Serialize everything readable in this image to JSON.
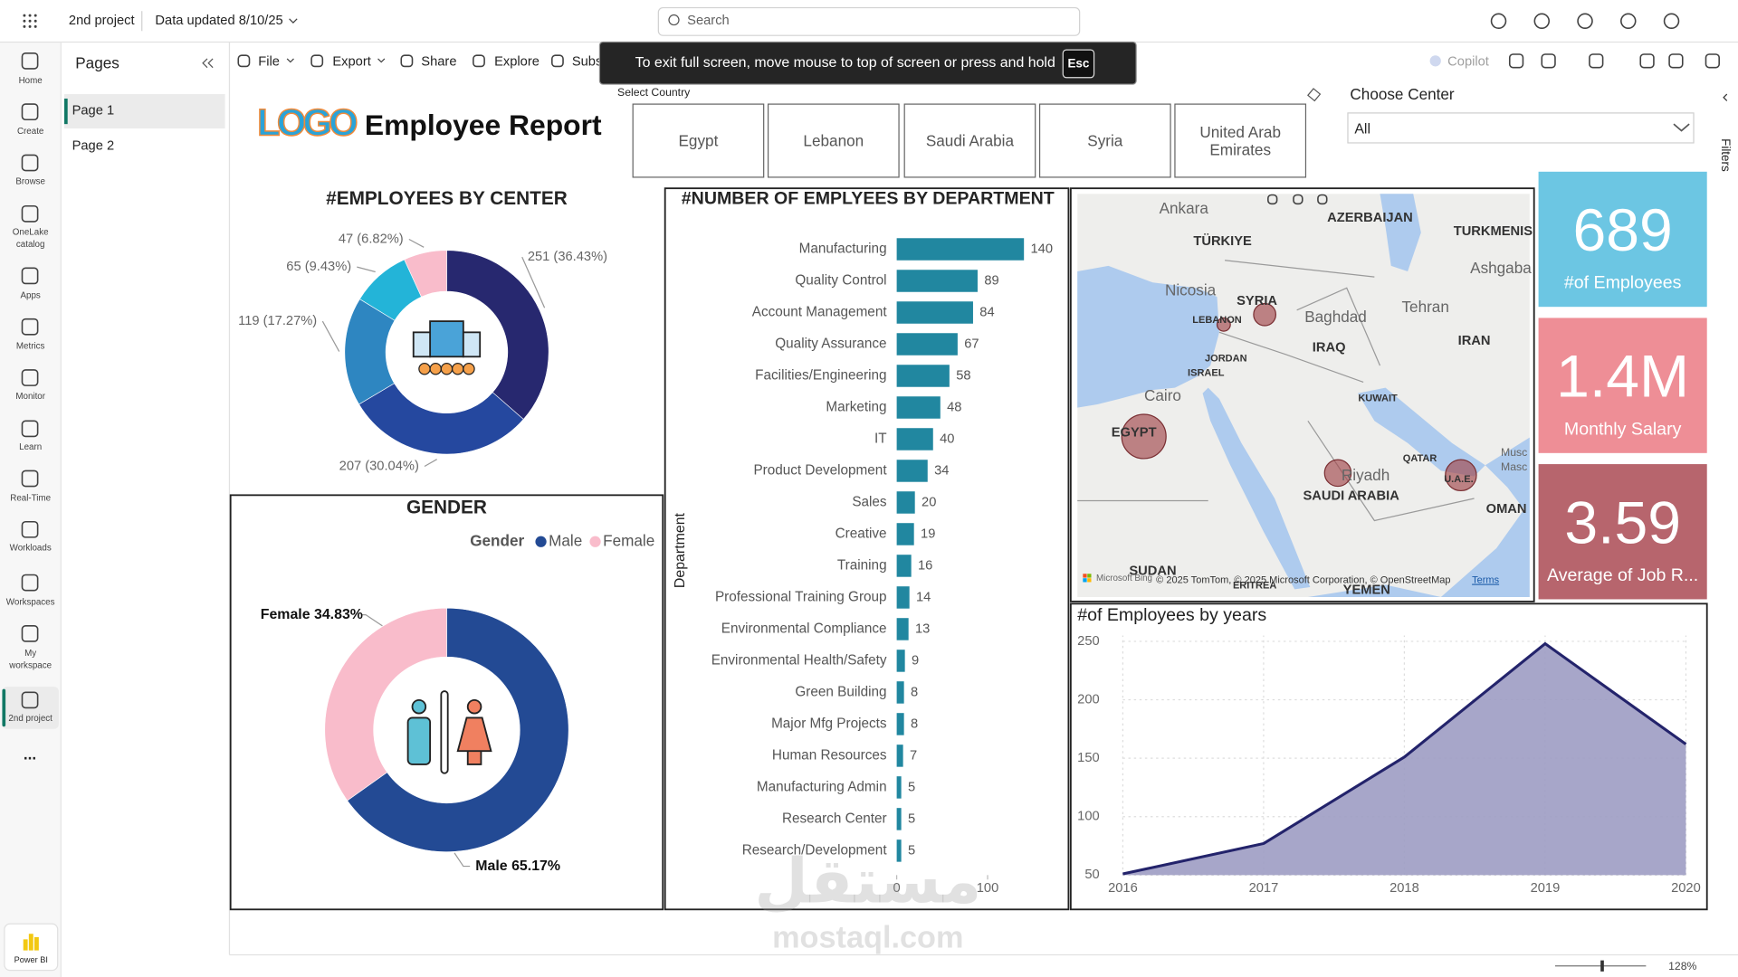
{
  "top_bar": {
    "workspace": "2nd project",
    "data_updated": "Data updated 8/10/25",
    "search": "Search"
  },
  "nav": [
    "Home",
    "Create",
    "Browse",
    "OneLake catalog",
    "Apps",
    "Metrics",
    "Monitor",
    "Learn",
    "Real-Time",
    "Workloads",
    "Workspaces",
    "My workspace",
    "2nd project"
  ],
  "nav_more": "...",
  "app_name": "Power BI",
  "pages_pane": {
    "title": "Pages",
    "pages": [
      "Page 1",
      "Page 2"
    ]
  },
  "toolbar": {
    "items": [
      "File",
      "Export",
      "Share",
      "Explore",
      "Subs"
    ],
    "copilot": "Copilot"
  },
  "toast": {
    "message": "To exit full screen, move mouse to top of screen or press and hold",
    "key": "Esc"
  },
  "report": {
    "logo": "LOGO",
    "title": "Employee Report",
    "slicer_label": "Select Country",
    "countries": [
      "Egypt",
      "Lebanon",
      "Saudi Arabia",
      "Syria",
      "United Arab Emirates"
    ],
    "center_label": "Choose Center",
    "center_value": "All",
    "filters": "Filters"
  },
  "kpis": [
    {
      "value": "689",
      "label": "#of Employees",
      "color": "#6cc6e3"
    },
    {
      "value": "1.4M",
      "label": "Monthly Salary",
      "color": "#ee8e96"
    },
    {
      "value": "3.59",
      "label": "Average of Job R...",
      "color": "#b7656d"
    }
  ],
  "map": {
    "labels": [
      "Ankara",
      "TÜRKIYE",
      "AZERBAIJAN",
      "TURKMENIS",
      "Ashgaba",
      "Nicosia",
      "SYRIA",
      "LEBANON",
      "Baghdad",
      "Tehran",
      "IRAQ",
      "IRAN",
      "JORDAN",
      "ISRAEL",
      "Cairo",
      "KUWAIT",
      "EGYPT",
      "QATAR",
      "Riyadh",
      "U.A.E.",
      "SAUDI ARABIA",
      "OMAN",
      "Musc",
      "Masc",
      "SUDAN",
      "ERITREA",
      "YEMEN"
    ],
    "bing": "Microsoft Bing",
    "attribution": "© 2025 TomTom, © 2025 Microsoft Corporation, © OpenStreetMap",
    "terms": "Terms"
  },
  "chart_data": [
    {
      "type": "donut",
      "title": "#EMPLOYEES BY CENTER",
      "values": [
        251,
        207,
        119,
        65,
        47
      ],
      "value_labels": [
        "251 (36.43%)",
        "207 (30.04%)",
        "119 (17.27%)",
        "65 (9.43%)",
        "47 (6.82%)"
      ],
      "colors": [
        "#27286f",
        "#25489f",
        "#2e86c1",
        "#23b4d8",
        "#f9bccb"
      ]
    },
    {
      "type": "donut",
      "title": "GENDER",
      "legend_title": "Gender",
      "categories": [
        "Male",
        "Female"
      ],
      "values": [
        65.17,
        34.83
      ],
      "value_labels": [
        "Male 65.17%",
        "Female 34.83%"
      ],
      "colors": [
        "#234a94",
        "#f9bccb"
      ]
    },
    {
      "type": "hbar",
      "title": "#NUMBER OF EMPLYEES BY DEPARTMENT",
      "y_label": "Department",
      "categories": [
        "Manufacturing",
        "Quality Control",
        "Account Management",
        "Quality Assurance",
        "Facilities/Engineering",
        "Marketing",
        "IT",
        "Product Development",
        "Sales",
        "Creative",
        "Training",
        "Professional Training Group",
        "Environmental Compliance",
        "Environmental Health/Safety",
        "Green Building",
        "Major Mfg Projects",
        "Human Resources",
        "Manufacturing Admin",
        "Research Center",
        "Research/Development"
      ],
      "values": [
        140,
        89,
        84,
        67,
        58,
        48,
        40,
        34,
        20,
        19,
        16,
        14,
        13,
        9,
        8,
        8,
        7,
        5,
        5,
        5
      ],
      "color": "#2187a0",
      "xlim": [
        0,
        180
      ],
      "xticks": [
        0,
        100
      ]
    },
    {
      "type": "area",
      "title": "#of Employees by years",
      "x": [
        2016,
        2017,
        2018,
        2019,
        2020
      ],
      "values": [
        51,
        77,
        151,
        248,
        162
      ],
      "xlim": [
        2016,
        2020
      ],
      "xticks": [
        2016,
        2017,
        2018,
        2019,
        2020
      ],
      "ylim": [
        50,
        255
      ],
      "yticks": [
        50,
        100,
        150,
        200,
        250
      ],
      "color": "#23236b",
      "fill": "#9d9cc3",
      "grid": true
    }
  ],
  "footer": {
    "zoom": "128%"
  },
  "watermark": {
    "arabic": "مستقل",
    "latin": "mostaql.com"
  }
}
